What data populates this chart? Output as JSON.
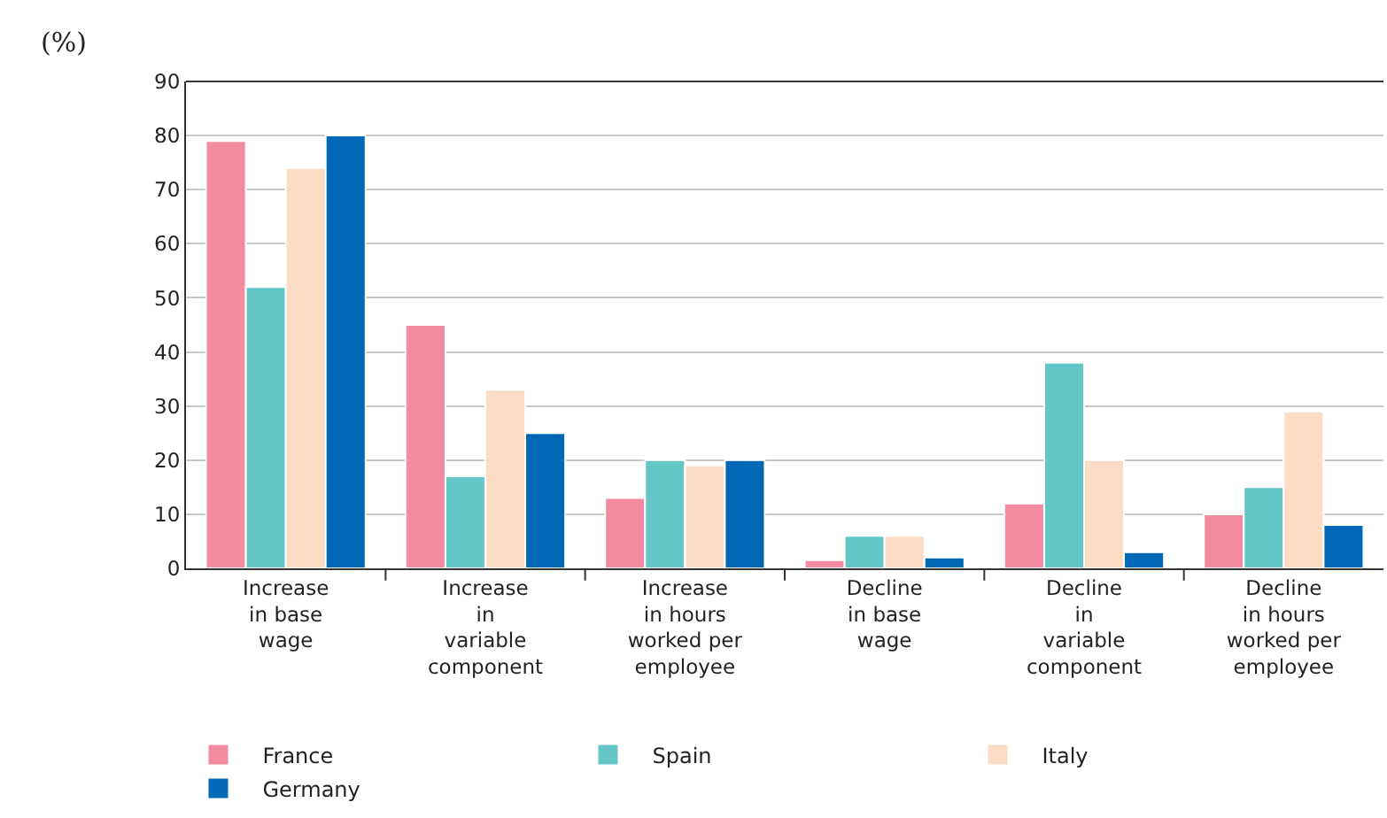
{
  "chart_data": {
    "type": "bar",
    "ylabel": "(%)",
    "categories": [
      "Increase\nin base\nwage",
      "Increase\nin\nvariable\ncomponent",
      "Increase\nin hours\nworked per\nemployee",
      "Decline\nin base\nwage",
      "Decline\nin\nvariable\ncomponent",
      "Decline\nin hours\nworked per\nemployee"
    ],
    "series": [
      {
        "name": "France",
        "color": "#f28aa0",
        "values": [
          79,
          45,
          13,
          1.5,
          12,
          10
        ]
      },
      {
        "name": "Spain",
        "color": "#64c6c6",
        "values": [
          52,
          17,
          20,
          6,
          38,
          15
        ]
      },
      {
        "name": "Italy",
        "color": "#fcdcc4",
        "values": [
          74,
          33,
          19,
          6,
          20,
          29
        ]
      },
      {
        "name": "Germany",
        "color": "#0068b4",
        "values": [
          80,
          25,
          20,
          2,
          3,
          8
        ]
      }
    ],
    "ylim": [
      0,
      90
    ],
    "yticks": [
      0,
      10,
      20,
      30,
      40,
      50,
      60,
      70,
      80,
      90
    ],
    "grid": "y",
    "legend": "bottom"
  }
}
